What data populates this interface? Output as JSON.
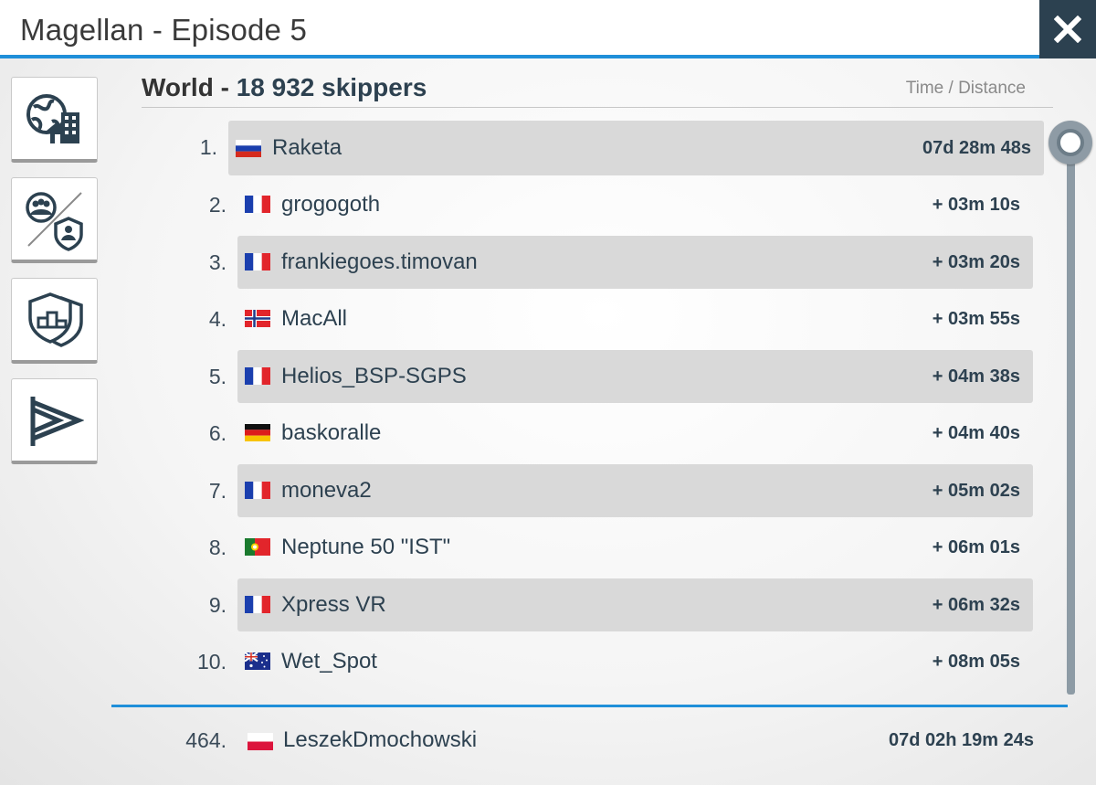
{
  "header": {
    "title": "Magellan - Episode 5"
  },
  "sidebar": {
    "buttons": [
      {
        "icon": "globe-building-icon"
      },
      {
        "icon": "groups-switch-icon"
      },
      {
        "icon": "podium-shield-icon"
      },
      {
        "icon": "pennant-flag-icon"
      }
    ]
  },
  "leaderboard": {
    "scope": "World -",
    "count": "18 932 skippers",
    "column_label": "Time / Distance",
    "rows": [
      {
        "rank": "1.",
        "flag": "russia",
        "name": "Raketa",
        "time": "07d 28m 48s"
      },
      {
        "rank": "2.",
        "flag": "france",
        "name": "grogogoth",
        "time": "+ 03m 10s"
      },
      {
        "rank": "3.",
        "flag": "france",
        "name": "frankiegoes.timovan",
        "time": "+ 03m 20s"
      },
      {
        "rank": "4.",
        "flag": "norway",
        "name": "MacAll",
        "time": "+ 03m 55s"
      },
      {
        "rank": "5.",
        "flag": "france",
        "name": "Helios_BSP-SGPS",
        "time": "+ 04m 38s"
      },
      {
        "rank": "6.",
        "flag": "germany",
        "name": "baskoralle",
        "time": "+ 04m 40s"
      },
      {
        "rank": "7.",
        "flag": "france",
        "name": "moneva2",
        "time": "+ 05m 02s"
      },
      {
        "rank": "8.",
        "flag": "portugal",
        "name": "Neptune 50 \"IST\"",
        "time": "+ 06m 01s"
      },
      {
        "rank": "9.",
        "flag": "france",
        "name": "Xpress VR",
        "time": "+ 06m 32s"
      },
      {
        "rank": "10.",
        "flag": "australia",
        "name": "Wet_Spot",
        "time": "+ 08m 05s"
      }
    ],
    "me": {
      "rank": "464.",
      "flag": "poland",
      "name": "LeszekDmochowski",
      "time": "07d 02h 19m 24s"
    }
  },
  "colors": {
    "accent": "#1f8fd9",
    "dark": "#2c4150",
    "row_shade": "#d9d9d9"
  }
}
